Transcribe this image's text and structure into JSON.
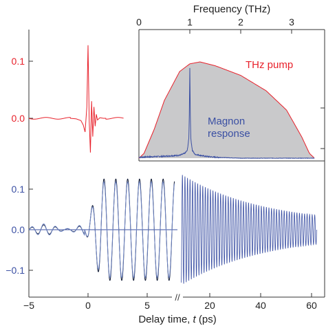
{
  "chart_data": [
    {
      "type": "line",
      "panel": "top-left",
      "series": [
        {
          "color": "#e8202a",
          "x": [
            -1.5,
            -1.0,
            -0.6,
            -0.4,
            -0.25,
            -0.1,
            0.0,
            0.1,
            0.2,
            0.3,
            0.4,
            0.5,
            0.6,
            0.7,
            0.8,
            1.0,
            1.3,
            1.5
          ],
          "y": [
            0.0,
            -0.001,
            -0.004,
            -0.012,
            -0.024,
            0.02,
            0.128,
            -0.005,
            -0.06,
            0.03,
            -0.032,
            0.02,
            -0.014,
            0.007,
            -0.003,
            0.001,
            0.0,
            0.0
          ]
        }
      ],
      "yticks": [
        0.0,
        0.1
      ],
      "tick_labels": [
        "0.0",
        "0.1"
      ],
      "tick_color": "#e8202a"
    },
    {
      "type": "area",
      "panel": "inset",
      "top_axis_label": "Frequency (THz)",
      "xticks": [
        0,
        1,
        2,
        3
      ],
      "xlim": [
        0,
        3.7
      ],
      "series": [
        {
          "name": "THz pump",
          "color": "#e8202a",
          "fill": "#c9c9cb",
          "x": [
            0.0,
            0.1,
            0.3,
            0.5,
            0.8,
            1.0,
            1.2,
            1.5,
            2.0,
            2.5,
            2.9,
            3.2,
            3.35,
            3.45
          ],
          "y": [
            0.0,
            0.05,
            0.3,
            0.6,
            0.9,
            0.98,
            1.0,
            0.96,
            0.86,
            0.7,
            0.5,
            0.22,
            0.05,
            0.0
          ]
        },
        {
          "name": "Magnon response",
          "color": "#3a4fa3",
          "x": [
            0.0,
            0.5,
            0.8,
            0.9,
            0.95,
            0.98,
            0.99,
            1.0,
            1.01,
            1.02,
            1.05,
            1.1,
            1.3,
            1.5,
            2.0,
            2.5,
            3.0,
            3.45
          ],
          "y": [
            0.01,
            0.02,
            0.03,
            0.05,
            0.08,
            0.2,
            0.45,
            0.94,
            0.45,
            0.2,
            0.08,
            0.04,
            0.02,
            0.01,
            0.0,
            0.0,
            0.0,
            0.0
          ]
        }
      ]
    },
    {
      "type": "line",
      "panel": "bottom",
      "xlabel": "Delay time, t (ps)",
      "xticks_left": [
        -5,
        0,
        5
      ],
      "xticks_right": [
        20,
        40,
        60
      ],
      "yticks": [
        -0.1,
        0.0,
        0.1
      ],
      "tick_labels": [
        "−0.1",
        "0.0",
        "0.1"
      ],
      "tick_color": "#3a4fa3",
      "series": [
        {
          "color": "#0b1530",
          "frequency_thz": 1.0,
          "amplitude": 0.125,
          "x_range": [
            -5,
            7
          ]
        },
        {
          "color": "#6f86c6",
          "frequency_thz": 1.0,
          "amplitude": 0.12,
          "x_range": [
            -5,
            62
          ]
        }
      ]
    }
  ],
  "labels": {
    "top_axis_title": "Frequency (THz)",
    "pump_label": "THz pump",
    "magnon_label_line1": "Magnon",
    "magnon_label_line2": "response",
    "xlabel_prefix": "Delay time, ",
    "xlabel_var": "t",
    "xlabel_suffix": " (ps)",
    "axis_break": "//",
    "top_ticks": [
      "0",
      "1",
      "2",
      "3"
    ],
    "upper_yticks": [
      "0.0",
      "0.1"
    ],
    "lower_yticks": [
      "0.1",
      "0.0",
      "−0.1"
    ],
    "bottom_ticks_left": [
      "−5",
      "0",
      "5"
    ],
    "bottom_ticks_right": [
      "20",
      "40",
      "60"
    ]
  },
  "colors": {
    "red": "#e8202a",
    "blue": "#3a4fa3",
    "dark": "#0b1530",
    "light_blue": "#6f86c6",
    "fill_gray": "#c9c9cb",
    "axis": "#333333"
  }
}
